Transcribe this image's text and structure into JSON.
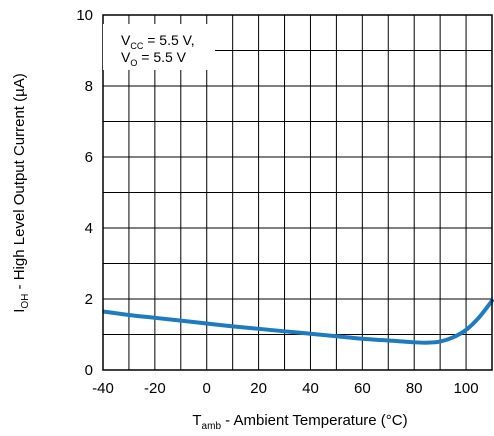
{
  "chart_data": {
    "type": "line",
    "xlabel": {
      "symbol": "T",
      "subscript": "amb",
      "text": " - Ambient Temperature (°C)"
    },
    "ylabel": {
      "symbol": "I",
      "subscript": "OH",
      "text": " - High Level Output Current (µA)"
    },
    "xlim": [
      -40,
      110
    ],
    "ylim": [
      0,
      10
    ],
    "xticks": [
      "-40",
      "-20",
      "0",
      "20",
      "40",
      "60",
      "80",
      "100"
    ],
    "yticks": [
      "0",
      "2",
      "4",
      "6",
      "8",
      "10"
    ],
    "x_grid_step": 10,
    "y_grid_step": 1,
    "grid": true,
    "annotation": {
      "line1": {
        "symbol": "V",
        "subscript": "CC",
        "text": " = 5.5 V,"
      },
      "line2": {
        "symbol": "V",
        "subscript": "O",
        "text": " = 5.5 V"
      },
      "placement": "top-left"
    },
    "series": [
      {
        "color": "#1f7bbf",
        "x": [
          -40,
          -30,
          -20,
          -10,
          0,
          10,
          20,
          30,
          40,
          50,
          60,
          70,
          80,
          85,
          90,
          95,
          100,
          105,
          110
        ],
        "y": [
          1.65,
          1.55,
          1.47,
          1.39,
          1.31,
          1.23,
          1.16,
          1.09,
          1.02,
          0.95,
          0.88,
          0.83,
          0.78,
          0.77,
          0.8,
          0.92,
          1.13,
          1.48,
          1.95
        ]
      }
    ]
  }
}
